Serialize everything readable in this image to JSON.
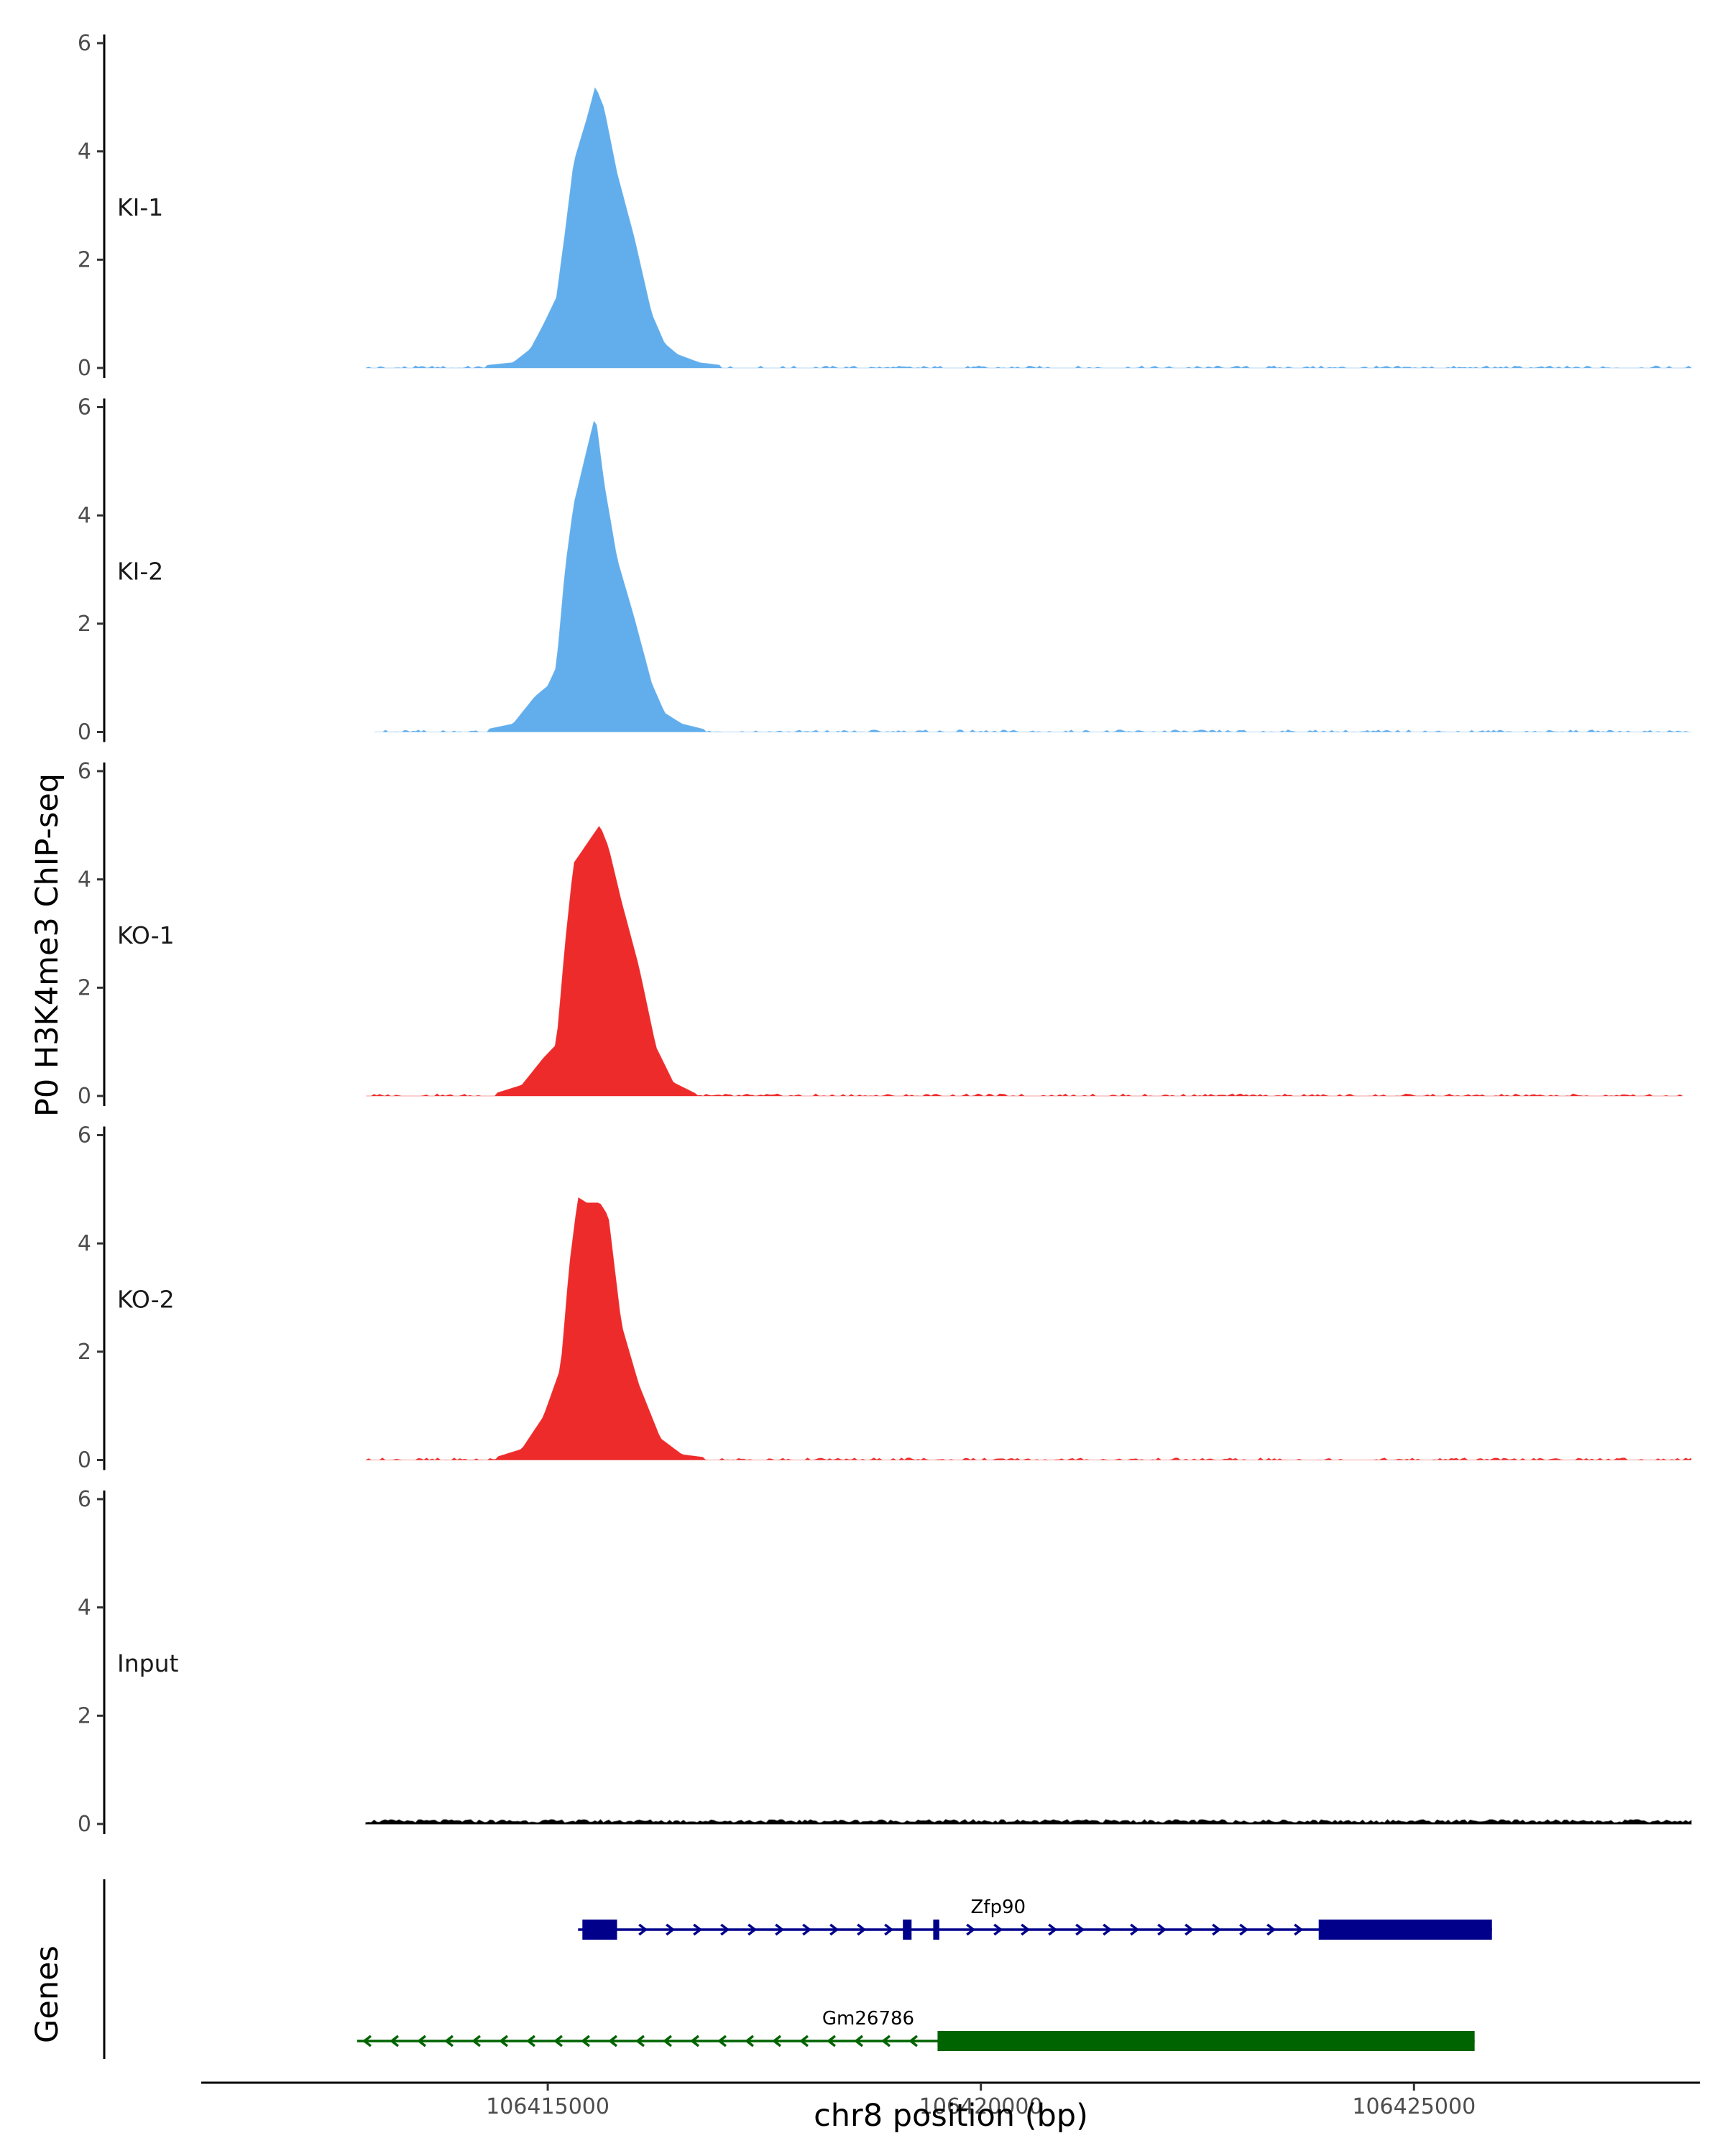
{
  "chart_data": {
    "type": "area",
    "ylabel": "P0 H3K4me3 ChIP-seq",
    "xlabel": "chr8 position (bp)",
    "xlim": [
      106411000,
      106428300
    ],
    "x_ticks": [
      106415000,
      106420000,
      106425000
    ],
    "x_tick_labels": [
      "106415000",
      "106420000",
      "106425000"
    ],
    "ylim": [
      0,
      6
    ],
    "y_ticks": [
      0,
      2,
      4,
      6
    ],
    "y_tick_labels": [
      "0",
      "2",
      "4",
      "6"
    ],
    "grid": false,
    "legend": "none",
    "tracks": [
      {
        "name": "KI-1",
        "color": "#62AEEC",
        "x_range": [
          106412900,
          106428200
        ],
        "peak": [
          [
            106414300,
            0.05
          ],
          [
            106414600,
            0.1
          ],
          [
            106414800,
            0.35
          ],
          [
            106414950,
            0.8
          ],
          [
            106415100,
            1.3
          ],
          [
            106415200,
            2.5
          ],
          [
            106415300,
            3.8
          ],
          [
            106415450,
            4.6
          ],
          [
            106415550,
            5.2
          ],
          [
            106415650,
            4.8
          ],
          [
            106415800,
            3.6
          ],
          [
            106416000,
            2.4
          ],
          [
            106416200,
            1.0
          ],
          [
            106416350,
            0.45
          ],
          [
            106416500,
            0.25
          ],
          [
            106416750,
            0.1
          ],
          [
            106417000,
            0.05
          ]
        ]
      },
      {
        "name": "KI-2",
        "color": "#62AEEC",
        "x_range": [
          106413000,
          106428200
        ],
        "peak": [
          [
            106414300,
            0.05
          ],
          [
            106414600,
            0.15
          ],
          [
            106414850,
            0.65
          ],
          [
            106415000,
            0.85
          ],
          [
            106415100,
            1.2
          ],
          [
            106415200,
            3.0
          ],
          [
            106415300,
            4.2
          ],
          [
            106415450,
            5.2
          ],
          [
            106415550,
            5.85
          ],
          [
            106415650,
            4.6
          ],
          [
            106415800,
            3.2
          ],
          [
            106416000,
            2.1
          ],
          [
            106416200,
            0.9
          ],
          [
            106416350,
            0.35
          ],
          [
            106416550,
            0.15
          ],
          [
            106416800,
            0.05
          ]
        ]
      },
      {
        "name": "KO-1",
        "color": "#EE2B2B",
        "x_range": [
          106412900,
          106428100
        ],
        "peak": [
          [
            106414400,
            0.05
          ],
          [
            106414700,
            0.2
          ],
          [
            106414950,
            0.7
          ],
          [
            106415100,
            0.95
          ],
          [
            106415200,
            2.8
          ],
          [
            106415300,
            4.3
          ],
          [
            106415450,
            4.65
          ],
          [
            106415600,
            5.0
          ],
          [
            106415700,
            4.6
          ],
          [
            106415850,
            3.6
          ],
          [
            106416050,
            2.4
          ],
          [
            106416250,
            0.9
          ],
          [
            106416450,
            0.25
          ],
          [
            106416700,
            0.05
          ]
        ]
      },
      {
        "name": "KO-2",
        "color": "#EE2B2B",
        "x_range": [
          106412900,
          106428200
        ],
        "peak": [
          [
            106414400,
            0.05
          ],
          [
            106414700,
            0.2
          ],
          [
            106414950,
            0.8
          ],
          [
            106415150,
            1.7
          ],
          [
            106415250,
            3.6
          ],
          [
            106415350,
            4.85
          ],
          [
            106415450,
            4.75
          ],
          [
            106415600,
            4.75
          ],
          [
            106415700,
            4.5
          ],
          [
            106415850,
            2.5
          ],
          [
            106416050,
            1.4
          ],
          [
            106416300,
            0.4
          ],
          [
            106416550,
            0.1
          ],
          [
            106416800,
            0.05
          ]
        ]
      },
      {
        "name": "Input",
        "color": "#000000",
        "x_range": [
          106412900,
          106428200
        ],
        "peak": []
      }
    ],
    "genes_track": {
      "label": "Genes",
      "genes": [
        {
          "name": "Zfp90",
          "strand": "+",
          "color": "#00008B",
          "start": 106415350,
          "end": 106425900,
          "exons": [
            [
              106415400,
              106415800
            ],
            [
              106419100,
              106419200
            ],
            [
              106419450,
              106419520
            ],
            [
              106423900,
              106425900
            ]
          ]
        },
        {
          "name": "Gm26786",
          "strand": "-",
          "color": "#006400",
          "start": 106412800,
          "end": 106425700,
          "exons": [
            [
              106419500,
              106425700
            ]
          ]
        }
      ]
    }
  }
}
